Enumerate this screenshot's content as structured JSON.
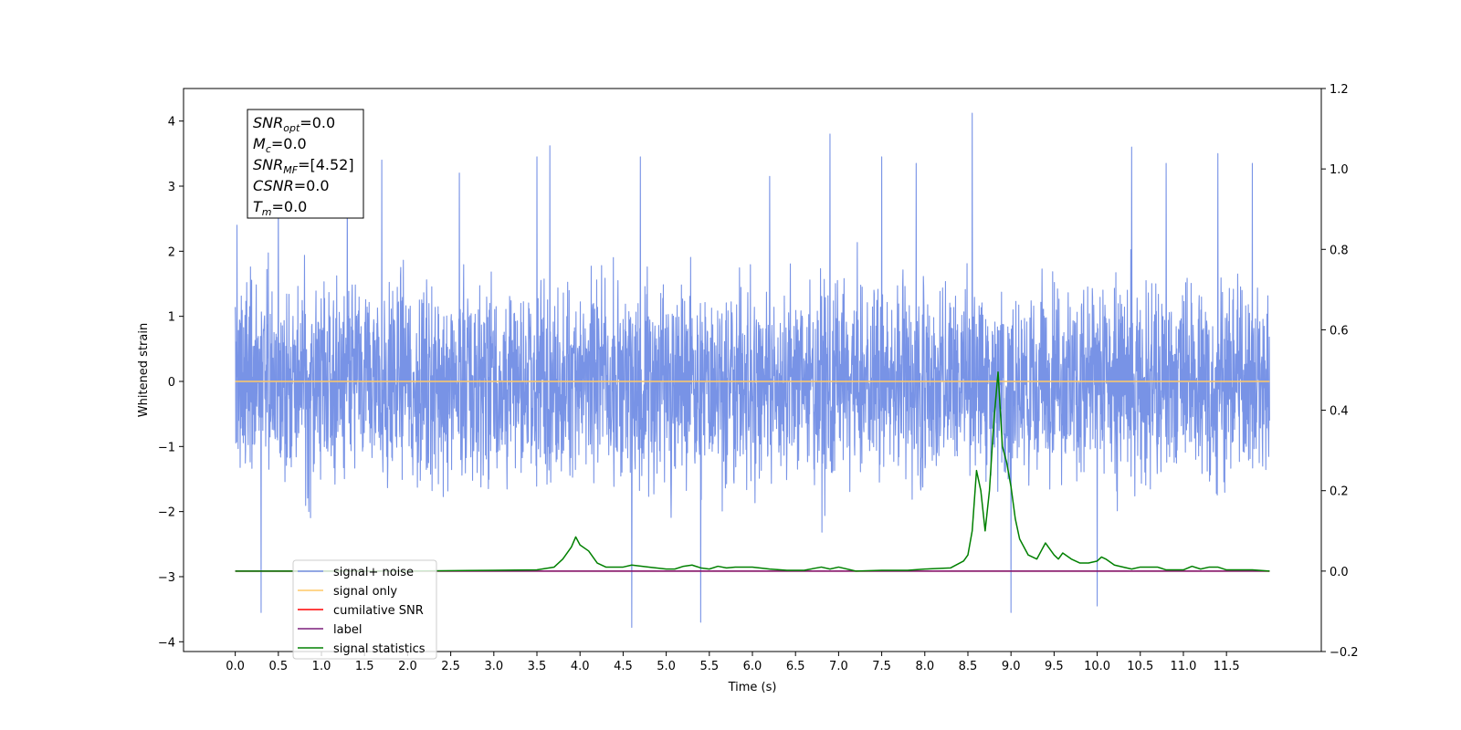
{
  "chart_data": {
    "type": "line",
    "xlabel": "Time (s)",
    "ylabel": "Whitened strain",
    "xlim": [
      -0.6,
      12.6
    ],
    "ylim": [
      -4.15,
      4.5
    ],
    "y2lim": [
      -0.2,
      1.2
    ],
    "x_ticks": [
      "0.0",
      "0.5",
      "1.0",
      "1.5",
      "2.0",
      "2.5",
      "3.0",
      "3.5",
      "4.0",
      "4.5",
      "5.0",
      "5.5",
      "6.0",
      "6.5",
      "7.0",
      "7.5",
      "8.0",
      "8.5",
      "9.0",
      "9.5",
      "10.0",
      "10.5",
      "11.0",
      "11.5"
    ],
    "y_ticks": [
      "−4",
      "−3",
      "−2",
      "−1",
      "0",
      "1",
      "2",
      "3",
      "4"
    ],
    "y2_ticks": [
      "−0.2",
      "0.0",
      "0.2",
      "0.4",
      "0.6",
      "0.8",
      "1.0",
      "1.2"
    ],
    "legend_position": "lower-left",
    "annotation": {
      "lines": [
        {
          "base": "SNR",
          "sub": "opt",
          "value": "=0.0"
        },
        {
          "base": "M",
          "sub": "c",
          "value": "=0.0"
        },
        {
          "base": "SNR",
          "sub": "MF",
          "value": "=[4.52]"
        },
        {
          "base": "CSNR",
          "sub": "",
          "value": "=0.0"
        },
        {
          "base": "T",
          "sub": "m",
          "value": "=0.0"
        }
      ]
    },
    "series": [
      {
        "name": "signal+ noise",
        "color": "#7893e6",
        "axis": "left",
        "kind": "noise",
        "x_range": [
          0.0,
          12.0
        ],
        "approx_band": [
          -2.0,
          2.0
        ],
        "peaks": [
          {
            "x": 0.02,
            "y": 2.4
          },
          {
            "x": 0.3,
            "y": -3.55
          },
          {
            "x": 0.5,
            "y": 2.9
          },
          {
            "x": 1.3,
            "y": 3.1
          },
          {
            "x": 1.7,
            "y": 3.4
          },
          {
            "x": 2.6,
            "y": 3.2
          },
          {
            "x": 3.5,
            "y": 3.45
          },
          {
            "x": 3.65,
            "y": 3.62
          },
          {
            "x": 4.6,
            "y": -3.78
          },
          {
            "x": 4.7,
            "y": 3.45
          },
          {
            "x": 5.4,
            "y": -3.7
          },
          {
            "x": 6.2,
            "y": 3.15
          },
          {
            "x": 6.9,
            "y": 3.8
          },
          {
            "x": 7.5,
            "y": 3.45
          },
          {
            "x": 7.9,
            "y": 3.35
          },
          {
            "x": 8.55,
            "y": 4.12
          },
          {
            "x": 9.0,
            "y": -3.55
          },
          {
            "x": 10.0,
            "y": -3.45
          },
          {
            "x": 10.4,
            "y": 3.6
          },
          {
            "x": 10.8,
            "y": 3.35
          },
          {
            "x": 11.4,
            "y": 3.5
          },
          {
            "x": 11.8,
            "y": 3.35
          }
        ]
      },
      {
        "name": "signal only",
        "color": "#ffc966",
        "axis": "left",
        "x": [
          0.0,
          12.0
        ],
        "values": [
          0.0,
          0.0
        ]
      },
      {
        "name": "cumilative SNR",
        "color": "#ff0000",
        "axis": "right",
        "x": [
          0.0,
          12.0
        ],
        "values": [
          0.0,
          0.0
        ]
      },
      {
        "name": "label",
        "color": "#7b1f7b",
        "axis": "right",
        "x": [
          0.0,
          12.0
        ],
        "values": [
          0.0,
          0.0
        ]
      },
      {
        "name": "signal statistics",
        "color": "#008000",
        "axis": "right",
        "x": [
          0.0,
          1.0,
          2.0,
          3.0,
          3.5,
          3.7,
          3.8,
          3.9,
          3.95,
          4.0,
          4.1,
          4.2,
          4.3,
          4.5,
          4.6,
          4.8,
          5.0,
          5.1,
          5.2,
          5.3,
          5.4,
          5.5,
          5.6,
          5.7,
          5.8,
          5.9,
          6.0,
          6.2,
          6.4,
          6.6,
          6.8,
          6.9,
          7.0,
          7.2,
          7.5,
          7.8,
          8.0,
          8.3,
          8.45,
          8.5,
          8.55,
          8.6,
          8.65,
          8.7,
          8.75,
          8.8,
          8.85,
          8.9,
          8.95,
          9.0,
          9.05,
          9.1,
          9.2,
          9.3,
          9.35,
          9.4,
          9.5,
          9.55,
          9.6,
          9.7,
          9.8,
          9.9,
          10.0,
          10.05,
          10.1,
          10.2,
          10.4,
          10.5,
          10.7,
          10.8,
          11.0,
          11.1,
          11.2,
          11.3,
          11.4,
          11.5,
          11.8,
          12.0
        ],
        "values": [
          0.0,
          0.0,
          0.0,
          0.002,
          0.003,
          0.01,
          0.03,
          0.06,
          0.085,
          0.065,
          0.05,
          0.02,
          0.01,
          0.01,
          0.015,
          0.01,
          0.005,
          0.005,
          0.012,
          0.015,
          0.008,
          0.005,
          0.012,
          0.008,
          0.01,
          0.01,
          0.01,
          0.005,
          0.002,
          0.002,
          0.01,
          0.005,
          0.01,
          0.0,
          0.002,
          0.002,
          0.005,
          0.008,
          0.025,
          0.04,
          0.1,
          0.25,
          0.2,
          0.1,
          0.2,
          0.37,
          0.495,
          0.31,
          0.27,
          0.21,
          0.13,
          0.08,
          0.04,
          0.03,
          0.05,
          0.07,
          0.04,
          0.03,
          0.045,
          0.03,
          0.02,
          0.02,
          0.025,
          0.035,
          0.03,
          0.015,
          0.005,
          0.01,
          0.01,
          0.003,
          0.003,
          0.012,
          0.005,
          0.01,
          0.01,
          0.003,
          0.003,
          0.0
        ]
      }
    ]
  }
}
